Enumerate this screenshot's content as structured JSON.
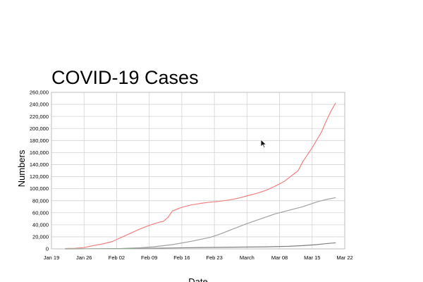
{
  "chart_data": {
    "type": "line",
    "title": "COVID-19 Cases",
    "xlabel": "Date",
    "ylabel": "Numbers",
    "x_tick_labels": [
      "Jan 19",
      "Jan 26",
      "Feb 02",
      "Feb 09",
      "Feb 16",
      "Feb 23",
      "March",
      "Mar 08",
      "Mar 15",
      "Mar 22"
    ],
    "x_tick_dates": [
      "2020-01-19",
      "2020-01-26",
      "2020-02-02",
      "2020-02-09",
      "2020-02-16",
      "2020-02-23",
      "2020-03-01",
      "2020-03-08",
      "2020-03-15",
      "2020-03-22"
    ],
    "xlim": [
      "2020-01-19",
      "2020-03-22"
    ],
    "y_ticks": [
      0,
      20000,
      40000,
      60000,
      80000,
      100000,
      120000,
      140000,
      160000,
      180000,
      200000,
      220000,
      240000,
      260000
    ],
    "y_tick_labels": [
      "0",
      "20,000",
      "40,000",
      "60,000",
      "80,000",
      "100,000",
      "120,000",
      "140,000",
      "160,000",
      "180,000",
      "200,000",
      "220,000",
      "240,000",
      "260,000"
    ],
    "ylim": [
      0,
      260000
    ],
    "grid": true,
    "series": [
      {
        "color": "#f08080",
        "points": [
          [
            "2020-01-22",
            555
          ],
          [
            "2020-01-24",
            950
          ],
          [
            "2020-01-26",
            2100
          ],
          [
            "2020-01-28",
            5500
          ],
          [
            "2020-01-30",
            8200
          ],
          [
            "2020-02-01",
            12000
          ],
          [
            "2020-02-03",
            19000
          ],
          [
            "2020-02-05",
            26000
          ],
          [
            "2020-02-07",
            33000
          ],
          [
            "2020-02-09",
            39000
          ],
          [
            "2020-02-11",
            44000
          ],
          [
            "2020-02-12",
            45500
          ],
          [
            "2020-02-13",
            52000
          ],
          [
            "2020-02-14",
            63000
          ],
          [
            "2020-02-16",
            69000
          ],
          [
            "2020-02-18",
            73000
          ],
          [
            "2020-02-20",
            75500
          ],
          [
            "2020-02-22",
            77500
          ],
          [
            "2020-02-24",
            79000
          ],
          [
            "2020-02-26",
            81000
          ],
          [
            "2020-02-28",
            84000
          ],
          [
            "2020-03-01",
            88000
          ],
          [
            "2020-03-03",
            92000
          ],
          [
            "2020-03-05",
            97000
          ],
          [
            "2020-03-07",
            104000
          ],
          [
            "2020-03-09",
            112000
          ],
          [
            "2020-03-11",
            124000
          ],
          [
            "2020-03-12",
            130000
          ],
          [
            "2020-03-13",
            145000
          ],
          [
            "2020-03-15",
            168000
          ],
          [
            "2020-03-17",
            194000
          ],
          [
            "2020-03-18",
            212000
          ],
          [
            "2020-03-19",
            228000
          ],
          [
            "2020-03-20",
            242000
          ]
        ]
      },
      {
        "color": "#a0a0a0",
        "points": [
          [
            "2020-01-22",
            28
          ],
          [
            "2020-01-26",
            50
          ],
          [
            "2020-01-30",
            150
          ],
          [
            "2020-02-03",
            550
          ],
          [
            "2020-02-07",
            1800
          ],
          [
            "2020-02-10",
            3500
          ],
          [
            "2020-02-14",
            7000
          ],
          [
            "2020-02-18",
            12500
          ],
          [
            "2020-02-22",
            19000
          ],
          [
            "2020-02-24",
            24000
          ],
          [
            "2020-02-27",
            33000
          ],
          [
            "2020-03-01",
            42000
          ],
          [
            "2020-03-04",
            50000
          ],
          [
            "2020-03-07",
            58000
          ],
          [
            "2020-03-10",
            64000
          ],
          [
            "2020-03-13",
            70000
          ],
          [
            "2020-03-16",
            78000
          ],
          [
            "2020-03-18",
            82000
          ],
          [
            "2020-03-20",
            85000
          ]
        ]
      },
      {
        "color": "#808080",
        "points": [
          [
            "2020-01-22",
            17
          ],
          [
            "2020-01-30",
            170
          ],
          [
            "2020-02-06",
            600
          ],
          [
            "2020-02-13",
            1400
          ],
          [
            "2020-02-20",
            2200
          ],
          [
            "2020-02-27",
            2800
          ],
          [
            "2020-03-05",
            3400
          ],
          [
            "2020-03-10",
            4200
          ],
          [
            "2020-03-13",
            5400
          ],
          [
            "2020-03-16",
            7000
          ],
          [
            "2020-03-18",
            8700
          ],
          [
            "2020-03-20",
            10000
          ]
        ]
      },
      {
        "color": "#4a9a4a",
        "points": [
          [
            "2020-01-22",
            0
          ],
          [
            "2020-01-28",
            80
          ],
          [
            "2020-02-02",
            200
          ],
          [
            "2020-02-06",
            400
          ]
        ]
      }
    ]
  }
}
